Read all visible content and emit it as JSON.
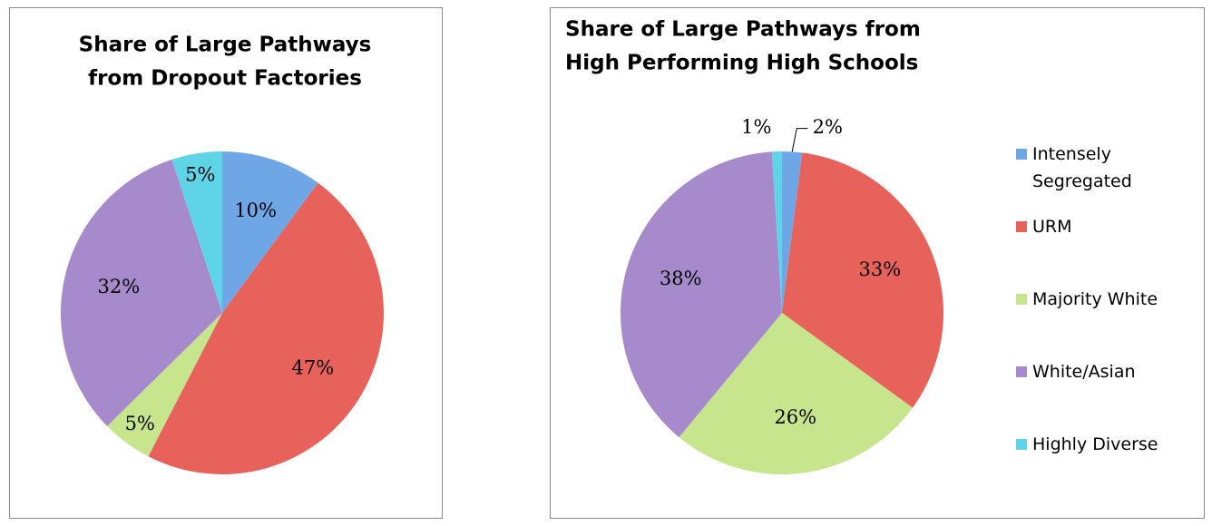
{
  "chart_data": [
    {
      "type": "pie",
      "title": [
        "Share of Large Pathways",
        "from Dropout Factories"
      ],
      "categories": [
        "Intensely Segregated",
        "URM",
        "Majority White",
        "White/Asian",
        "Highly Diverse"
      ],
      "values": [
        10,
        47,
        5,
        32,
        5
      ],
      "value_labels": [
        "10%",
        "47%",
        "5%",
        "32%",
        "5%"
      ],
      "colors": [
        "#6fa6e6",
        "#e8625c",
        "#c6e58c",
        "#a68acb",
        "#5fd4e6"
      ]
    },
    {
      "type": "pie",
      "title": [
        "Share of Large Pathways from",
        "High Performing High Schools"
      ],
      "categories": [
        "Intensely Segregated",
        "URM",
        "Majority White",
        "White/Asian",
        "Highly Diverse"
      ],
      "values": [
        2,
        33,
        26,
        38,
        1
      ],
      "value_labels": [
        "2%",
        "33%",
        "26%",
        "38%",
        "1%"
      ],
      "colors": [
        "#6fa6e6",
        "#e8625c",
        "#c6e58c",
        "#a68acb",
        "#5fd4e6"
      ],
      "legend": "right"
    }
  ]
}
